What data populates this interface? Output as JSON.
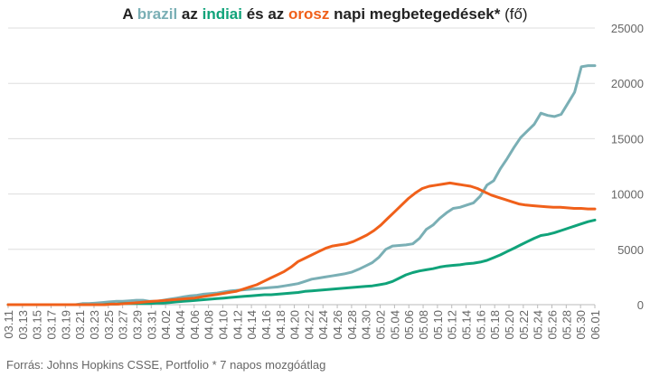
{
  "title": {
    "p1": "A ",
    "brazil": "brazil",
    "p2": " az ",
    "india": "indiai",
    "p3": " és az ",
    "russia": "orosz",
    "p4": " napi megbetegedések*",
    "unit": " (fő)"
  },
  "source": "Forrás: Johns Hopkins CSSE, Portfolio   * 7 napos mozgóátlag",
  "colors": {
    "brazil": "#7aafb5",
    "india": "#10a37a",
    "russia": "#f0601a",
    "grid": "#dddddd",
    "axis": "#bbbbbb",
    "text": "#666666"
  },
  "chart_data": {
    "type": "line",
    "x_tick_labels": [
      "03.11",
      "03.13",
      "03.15",
      "03.17",
      "03.19",
      "03.21",
      "03.23",
      "03.25",
      "03.27",
      "03.29",
      "03.31",
      "04.02",
      "04.04",
      "04.06",
      "04.08",
      "04.10",
      "04.12",
      "04.14",
      "04.16",
      "04.18",
      "04.20",
      "04.22",
      "04.24",
      "04.26",
      "04.28",
      "04.30",
      "05.02",
      "05.04",
      "05.06",
      "05.08",
      "05.10",
      "05.12",
      "05.14",
      "05.16",
      "05.18",
      "05.20",
      "05.22",
      "05.24",
      "05.26",
      "05.28",
      "05.30",
      "06.01"
    ],
    "ylim": [
      0,
      25000
    ],
    "y_ticks": [
      0,
      5000,
      10000,
      15000,
      20000,
      25000
    ],
    "grid": true,
    "legend": "none",
    "series": [
      {
        "key": "brazil",
        "values": [
          0,
          0,
          0,
          0,
          0,
          0,
          0,
          0,
          0,
          0,
          0,
          100,
          100,
          150,
          200,
          250,
          300,
          300,
          350,
          400,
          400,
          300,
          300,
          400,
          500,
          600,
          700,
          800,
          850,
          950,
          1000,
          1050,
          1150,
          1250,
          1300,
          1350,
          1400,
          1450,
          1500,
          1550,
          1600,
          1700,
          1800,
          1900,
          2100,
          2300,
          2400,
          2500,
          2600,
          2700,
          2800,
          2950,
          3200,
          3500,
          3800,
          4300,
          5000,
          5300,
          5350,
          5400,
          5500,
          6000,
          6800,
          7200,
          7800,
          8300,
          8700,
          8800,
          9000,
          9200,
          9800,
          10800,
          11200,
          12300,
          13200,
          14200,
          15100,
          15700,
          16300,
          17300,
          17100,
          17000,
          17200,
          18200,
          19200,
          21500,
          21600,
          21600
        ],
        "start_index": 0
      },
      {
        "key": "india",
        "values": [
          0,
          0,
          0,
          0,
          0,
          0,
          0,
          0,
          0,
          0,
          0,
          0,
          0,
          0,
          0,
          50,
          50,
          100,
          100,
          100,
          100,
          100,
          150,
          150,
          200,
          250,
          300,
          350,
          400,
          450,
          500,
          550,
          600,
          650,
          700,
          750,
          800,
          850,
          900,
          900,
          950,
          1000,
          1050,
          1100,
          1200,
          1250,
          1300,
          1350,
          1400,
          1450,
          1500,
          1550,
          1600,
          1650,
          1700,
          1800,
          1900,
          2100,
          2400,
          2700,
          2900,
          3050,
          3150,
          3250,
          3400,
          3500,
          3550,
          3600,
          3700,
          3750,
          3850,
          4000,
          4250,
          4500,
          4800,
          5100,
          5400,
          5700,
          6000,
          6250,
          6350,
          6500,
          6700,
          6900,
          7100,
          7300,
          7500,
          7650
        ],
        "start_index": 0
      },
      {
        "key": "russia",
        "values": [
          0,
          0,
          0,
          0,
          0,
          0,
          0,
          0,
          0,
          0,
          0,
          0,
          0,
          0,
          0,
          50,
          50,
          100,
          150,
          200,
          250,
          300,
          350,
          400,
          450,
          500,
          550,
          600,
          700,
          800,
          900,
          1000,
          1100,
          1200,
          1400,
          1600,
          1800,
          2100,
          2400,
          2700,
          3000,
          3400,
          3900,
          4200,
          4500,
          4800,
          5100,
          5300,
          5400,
          5500,
          5700,
          6000,
          6300,
          6700,
          7200,
          7800,
          8400,
          9000,
          9600,
          10100,
          10500,
          10700,
          10800,
          10900,
          11000,
          10900,
          10800,
          10700,
          10500,
          10200,
          9900,
          9700,
          9500,
          9300,
          9100,
          9000,
          8950,
          8900,
          8850,
          8800,
          8800,
          8750,
          8700,
          8700,
          8650,
          8650
        ],
        "start_index": 0
      }
    ]
  }
}
